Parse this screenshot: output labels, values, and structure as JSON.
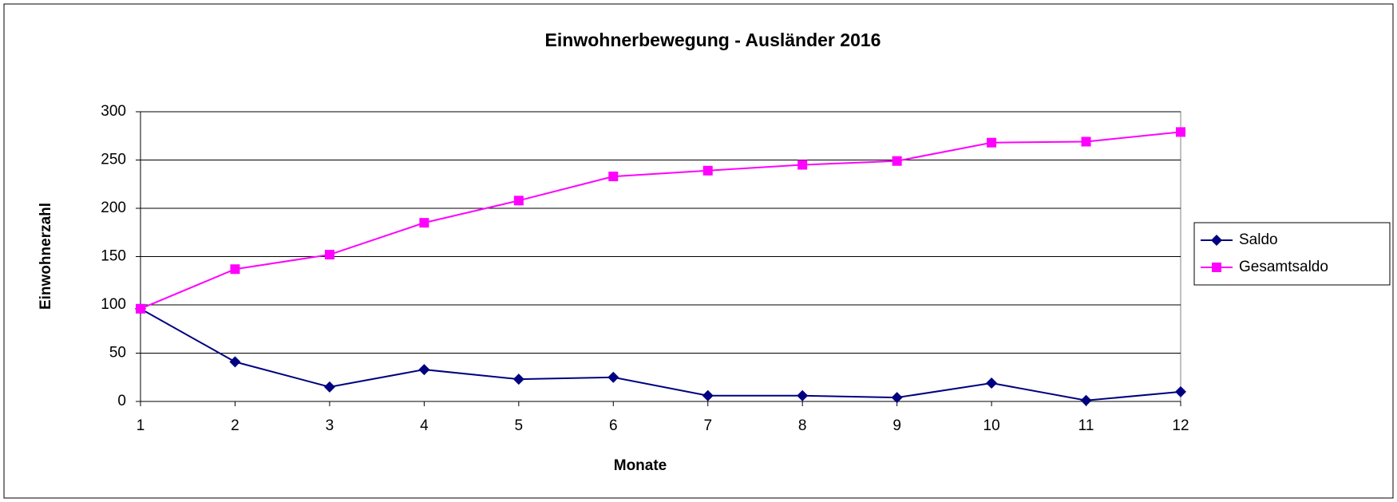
{
  "chart_data": {
    "type": "line",
    "title": "Einwohnerbewegung - Ausländer 2016",
    "x_label": "Monate",
    "y_label": "Einwohnerzahl",
    "x": [
      1,
      2,
      3,
      4,
      5,
      6,
      7,
      8,
      9,
      10,
      11,
      12
    ],
    "xlim": [
      1,
      12
    ],
    "xticks": [
      1,
      2,
      3,
      4,
      5,
      6,
      7,
      8,
      9,
      10,
      11,
      12
    ],
    "ylim": [
      0,
      300
    ],
    "yticks": [
      0,
      50,
      100,
      150,
      200,
      250,
      300
    ],
    "grid": true,
    "legend": "right",
    "series": [
      {
        "name": "Saldo",
        "color": "#000080",
        "marker": "diamond",
        "values": [
          96,
          41,
          15,
          33,
          23,
          25,
          6,
          6,
          4,
          19,
          1,
          10
        ]
      },
      {
        "name": "Gesamtsaldo",
        "color": "#ff00ff",
        "marker": "square",
        "values": [
          96,
          137,
          152,
          185,
          208,
          233,
          239,
          245,
          249,
          268,
          269,
          279
        ]
      }
    ]
  }
}
